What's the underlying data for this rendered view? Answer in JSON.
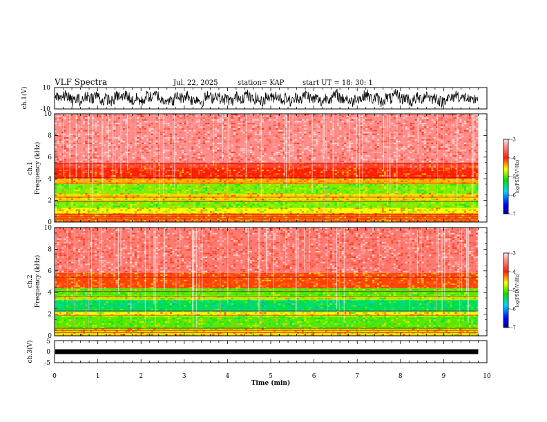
{
  "header": {
    "title": "VLF Spectra",
    "date": "Jul. 22, 2025",
    "station": "station= KAP",
    "start": "start UT =  18: 30: 1"
  },
  "chart_data": [
    {
      "type": "line",
      "panel": "ch1-waveform",
      "ylabel": "ch.1(V)",
      "ylim": [
        -10,
        10
      ],
      "yticks": [
        "10",
        "-10"
      ],
      "xlim": [
        0,
        10
      ]
    },
    {
      "type": "heatmap",
      "panel": "ch1-spectrogram",
      "ylabel_line1": "ch.1",
      "ylabel_line2": "Frequency (kHz)",
      "ylim": [
        0,
        10
      ],
      "yticks": [
        "0",
        "2",
        "4",
        "6",
        "8",
        "10"
      ],
      "xlim": [
        0,
        10
      ],
      "data_end_min": 9.8,
      "bands": [
        {
          "f0": 0,
          "f1": 0.8,
          "level": -4.2
        },
        {
          "f0": 0.8,
          "f1": 1.3,
          "level": -4.6
        },
        {
          "f0": 1.3,
          "f1": 2.0,
          "level": -4.9
        },
        {
          "f0": 2.0,
          "f1": 2.6,
          "level": -4.5
        },
        {
          "f0": 2.6,
          "f1": 3.5,
          "level": -4.9
        },
        {
          "f0": 3.5,
          "f1": 4.0,
          "level": -4.4
        },
        {
          "f0": 4.0,
          "f1": 5.0,
          "level": -4.0
        },
        {
          "f0": 5.0,
          "f1": 5.5,
          "level": -3.8
        },
        {
          "f0": 5.5,
          "f1": 10,
          "level": -3.4
        }
      ],
      "colorbar": {
        "ticks": [
          "-3",
          "-4",
          "-5",
          "-6",
          "-7"
        ],
        "label": "log(PSD)(V²/Hz)",
        "range": [
          -7,
          -3
        ]
      }
    },
    {
      "type": "heatmap",
      "panel": "ch2-spectrogram",
      "ylabel_line1": "ch.2",
      "ylabel_line2": "Frequency (kHz)",
      "ylim": [
        0,
        10
      ],
      "yticks": [
        "0",
        "2",
        "4",
        "6",
        "8",
        "10"
      ],
      "xlim": [
        0,
        10
      ],
      "data_end_min": 9.8,
      "bands": [
        {
          "f0": 0,
          "f1": 0.6,
          "level": -4.5
        },
        {
          "f0": 0.6,
          "f1": 1.8,
          "level": -5.0
        },
        {
          "f0": 1.8,
          "f1": 2.2,
          "level": -4.6
        },
        {
          "f0": 2.2,
          "f1": 3.3,
          "level": -5.4
        },
        {
          "f0": 3.3,
          "f1": 3.7,
          "level": -4.8
        },
        {
          "f0": 3.7,
          "f1": 4.4,
          "level": -5.0
        },
        {
          "f0": 4.4,
          "f1": 5.8,
          "level": -4.1
        },
        {
          "f0": 5.8,
          "f1": 10,
          "level": -3.5
        }
      ],
      "colorbar": {
        "ticks": [
          "-3",
          "-4",
          "-5",
          "-6",
          "-7"
        ],
        "label": "log(PSD)(V²/Hz)",
        "range": [
          -7,
          -3
        ]
      }
    },
    {
      "type": "line",
      "panel": "ch3-waveform",
      "ylabel": "ch.3(V)",
      "ylim": [
        -5,
        5
      ],
      "yticks": [
        "5",
        "0",
        "-5"
      ],
      "xlim": [
        0,
        10
      ],
      "signal_level": 0
    }
  ],
  "xaxis": {
    "label": "Time (min)",
    "ticks": [
      "0",
      "1",
      "2",
      "3",
      "4",
      "5",
      "6",
      "7",
      "8",
      "9",
      "10"
    ]
  }
}
